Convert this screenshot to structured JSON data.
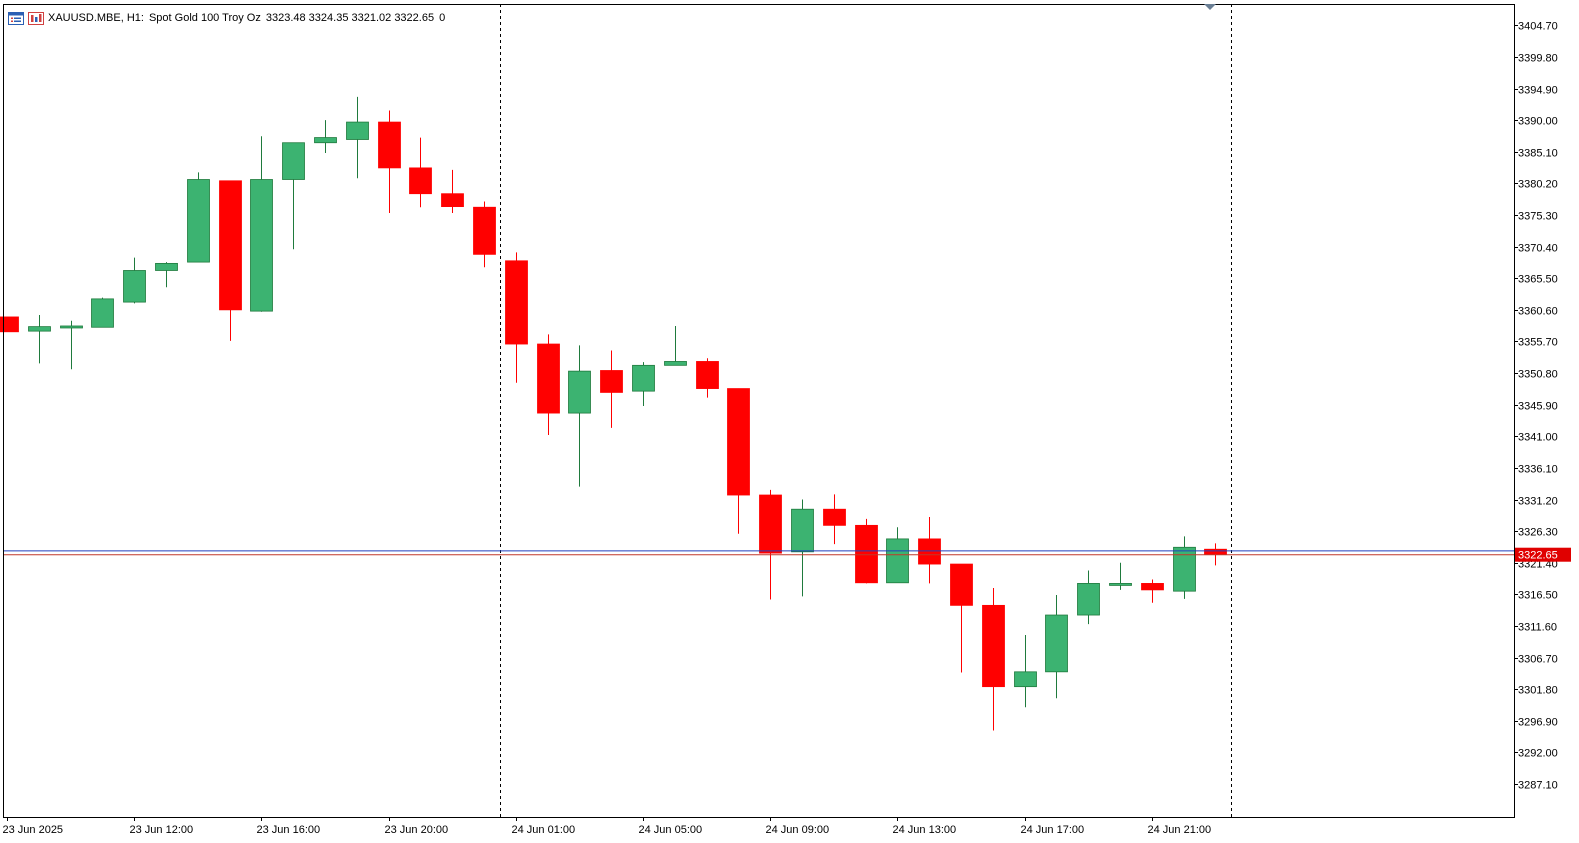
{
  "header": {
    "symbol_period": "XAUUSD.MBE, H1:",
    "description": "Spot Gold 100 Troy Oz",
    "ohlc": "3323.48 3324.35 3321.02 3322.65",
    "trailing": "0",
    "icons": [
      "list-window-icon",
      "chart-properties-icon"
    ]
  },
  "price_marker": {
    "label": "3322.65",
    "value": 3322.65,
    "bg_color": "#e00000"
  },
  "colors": {
    "bull": "#3cb371",
    "bear": "#ff0000",
    "bid_line": "#c0392b",
    "ask_line": "#1f3fbf",
    "separator": "#000000",
    "axis": "#000000"
  },
  "chart_data": {
    "type": "candlestick",
    "title": "",
    "xlabel": "",
    "ylabel": "",
    "ylim": [
      3282.0,
      3408.0
    ],
    "y_ticks": [
      "3287.10",
      "3292.00",
      "3296.90",
      "3301.80",
      "3306.70",
      "3311.60",
      "3316.50",
      "3321.40",
      "3326.30",
      "3331.20",
      "3336.10",
      "3341.00",
      "3345.90",
      "3350.80",
      "3355.70",
      "3360.60",
      "3365.50",
      "3370.40",
      "3375.30",
      "3380.20",
      "3385.10",
      "3390.00",
      "3394.90",
      "3399.80",
      "3404.70"
    ],
    "x_ticks": [
      {
        "index": 0,
        "label": "23 Jun 2025"
      },
      {
        "index": 4,
        "label": "23 Jun 12:00"
      },
      {
        "index": 8,
        "label": "23 Jun 16:00"
      },
      {
        "index": 12,
        "label": "23 Jun 20:00"
      },
      {
        "index": 16,
        "label": "24 Jun 01:00"
      },
      {
        "index": 20,
        "label": "24 Jun 05:00"
      },
      {
        "index": 24,
        "label": "24 Jun 09:00"
      },
      {
        "index": 28,
        "label": "24 Jun 13:00"
      },
      {
        "index": 32,
        "label": "24 Jun 17:00"
      },
      {
        "index": 36,
        "label": "24 Jun 21:00"
      }
    ],
    "day_separators": [
      15.5,
      38.5
    ],
    "bid": 3322.65,
    "ask": 3323.25,
    "candles": [
      {
        "o": 3359.5,
        "h": 3359.5,
        "l": 3357.2,
        "c": 3357.2
      },
      {
        "o": 3357.3,
        "h": 3359.8,
        "l": 3352.3,
        "c": 3358.0
      },
      {
        "o": 3358.0,
        "h": 3358.9,
        "l": 3351.4,
        "c": 3358.1
      },
      {
        "o": 3357.9,
        "h": 3362.5,
        "l": 3357.9,
        "c": 3362.3
      },
      {
        "o": 3361.8,
        "h": 3368.7,
        "l": 3361.6,
        "c": 3366.7
      },
      {
        "o": 3366.7,
        "h": 3368.0,
        "l": 3364.1,
        "c": 3367.8
      },
      {
        "o": 3368.0,
        "h": 3381.9,
        "l": 3368.0,
        "c": 3380.8
      },
      {
        "o": 3380.6,
        "h": 3380.6,
        "l": 3355.8,
        "c": 3360.6
      },
      {
        "o": 3360.4,
        "h": 3387.5,
        "l": 3360.3,
        "c": 3380.8
      },
      {
        "o": 3380.8,
        "h": 3386.5,
        "l": 3370.0,
        "c": 3386.5
      },
      {
        "o": 3386.5,
        "h": 3390.0,
        "l": 3384.9,
        "c": 3387.3
      },
      {
        "o": 3387.0,
        "h": 3393.6,
        "l": 3381.0,
        "c": 3389.7
      },
      {
        "o": 3389.7,
        "h": 3391.5,
        "l": 3375.6,
        "c": 3382.6
      },
      {
        "o": 3382.6,
        "h": 3387.3,
        "l": 3376.5,
        "c": 3378.6
      },
      {
        "o": 3378.6,
        "h": 3382.3,
        "l": 3375.6,
        "c": 3376.6
      },
      {
        "o": 3376.5,
        "h": 3377.4,
        "l": 3367.2,
        "c": 3369.2
      },
      {
        "o": 3368.2,
        "h": 3369.5,
        "l": 3349.3,
        "c": 3355.3
      },
      {
        "o": 3355.3,
        "h": 3356.8,
        "l": 3341.2,
        "c": 3344.6
      },
      {
        "o": 3344.6,
        "h": 3355.1,
        "l": 3333.2,
        "c": 3351.1
      },
      {
        "o": 3351.2,
        "h": 3354.3,
        "l": 3342.3,
        "c": 3347.8
      },
      {
        "o": 3348.0,
        "h": 3352.5,
        "l": 3345.7,
        "c": 3352.0
      },
      {
        "o": 3352.0,
        "h": 3358.1,
        "l": 3352.0,
        "c": 3352.6
      },
      {
        "o": 3352.6,
        "h": 3353.1,
        "l": 3347.0,
        "c": 3348.4
      },
      {
        "o": 3348.4,
        "h": 3348.4,
        "l": 3325.9,
        "c": 3331.9
      },
      {
        "o": 3331.9,
        "h": 3332.7,
        "l": 3315.7,
        "c": 3322.9
      },
      {
        "o": 3323.1,
        "h": 3331.2,
        "l": 3316.2,
        "c": 3329.7
      },
      {
        "o": 3329.7,
        "h": 3332.0,
        "l": 3324.3,
        "c": 3327.2
      },
      {
        "o": 3327.2,
        "h": 3328.2,
        "l": 3318.2,
        "c": 3318.3
      },
      {
        "o": 3318.3,
        "h": 3326.9,
        "l": 3318.3,
        "c": 3325.1
      },
      {
        "o": 3325.1,
        "h": 3328.5,
        "l": 3318.2,
        "c": 3321.2
      },
      {
        "o": 3321.2,
        "h": 3321.2,
        "l": 3304.4,
        "c": 3314.8
      },
      {
        "o": 3314.8,
        "h": 3317.5,
        "l": 3295.4,
        "c": 3302.2
      },
      {
        "o": 3302.2,
        "h": 3310.2,
        "l": 3299.0,
        "c": 3304.5
      },
      {
        "o": 3304.5,
        "h": 3316.4,
        "l": 3300.4,
        "c": 3313.3
      },
      {
        "o": 3313.3,
        "h": 3320.2,
        "l": 3311.9,
        "c": 3318.2
      },
      {
        "o": 3318.2,
        "h": 3321.4,
        "l": 3317.2,
        "c": 3318.2
      },
      {
        "o": 3318.2,
        "h": 3318.8,
        "l": 3315.2,
        "c": 3317.2
      },
      {
        "o": 3317.0,
        "h": 3325.5,
        "l": 3315.8,
        "c": 3323.8
      },
      {
        "o": 3323.5,
        "h": 3324.4,
        "l": 3321.0,
        "c": 3322.7
      }
    ]
  }
}
